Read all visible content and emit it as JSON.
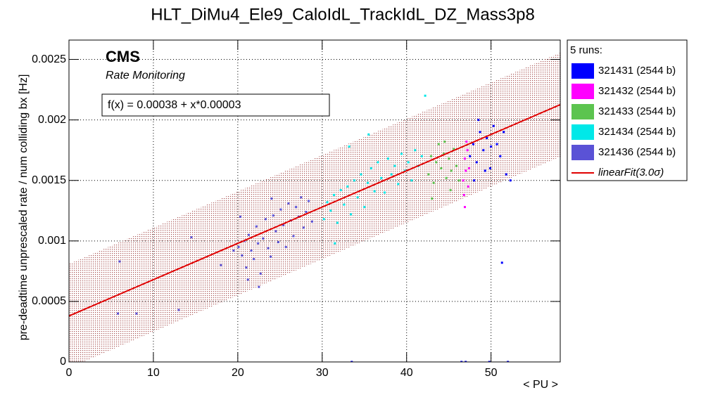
{
  "chart_data": {
    "type": "scatter",
    "title": "HLT_DiMu4_Ele9_CaloIdL_TrackIdL_DZ_Mass3p8",
    "x_label": "< PU >",
    "y_label": "pre-deadtime unprescaled rate / num colliding bx [Hz]",
    "annotations": [
      "CMS",
      "Rate Monitoring"
    ],
    "xlim": [
      0,
      58.2
    ],
    "xticks": [
      0,
      10,
      20,
      30,
      40,
      50
    ],
    "ylim": [
      0,
      0.00266
    ],
    "yticks": [
      0,
      0.0005,
      0.001,
      0.0015,
      0.002,
      0.0025
    ],
    "grid": true,
    "legend_title": "5 runs:",
    "legend": "top-right-outside",
    "fit": {
      "label": "f(x) = 0.00038 + x*0.00003",
      "legend": "linearFit(3.0σ)",
      "color": "#e00000",
      "intercept": 0.00038,
      "slope": 3e-05,
      "band": 0.00043
    },
    "series": [
      {
        "name": "321431 (2544 b)",
        "color": "#0000ff",
        "x": [
          47.5,
          47.9,
          48.3,
          48.7,
          49.1,
          49.5,
          49.9,
          50.3,
          50.7,
          51.1,
          51.5,
          48.0,
          49.3,
          50.0,
          51.8,
          52.3,
          48.5,
          51.3,
          33.5,
          46.5,
          47,
          49.8,
          52
        ],
        "y": [
          0.0017,
          0.0018,
          0.00165,
          0.0019,
          0.00175,
          0.00185,
          0.0016,
          0.00195,
          0.0018,
          0.0017,
          0.0019,
          0.0015,
          0.00158,
          0.00178,
          0.00155,
          0.0015,
          0.002,
          0.00082,
          0,
          0,
          0,
          0,
          0
        ]
      },
      {
        "name": "321432 (2544 b)",
        "color": "#ff00ff",
        "x": [
          46.7,
          46.9,
          47.0,
          47.2,
          47.3,
          46.8,
          47.1,
          47.4,
          46.9
        ],
        "y": [
          0.0015,
          0.00168,
          0.00158,
          0.00175,
          0.00145,
          0.00138,
          0.00182,
          0.0016,
          0.00128
        ]
      },
      {
        "name": "321433 (2544 b)",
        "color": "#5cc44f",
        "x": [
          42.6,
          42.9,
          43.2,
          43.5,
          43.8,
          44.1,
          44.4,
          44.7,
          45.0,
          45.3,
          45.6,
          45.9,
          46.2,
          43.0,
          44.5,
          45.2
        ],
        "y": [
          0.00155,
          0.0017,
          0.00148,
          0.00165,
          0.0018,
          0.0016,
          0.00172,
          0.00152,
          0.00168,
          0.00158,
          0.00176,
          0.00162,
          0.0015,
          0.00135,
          0.00182,
          0.00142
        ]
      },
      {
        "name": "321434 (2544 b)",
        "color": "#00e8e8",
        "x": [
          30.2,
          30.6,
          31.0,
          31.4,
          31.8,
          32.2,
          32.6,
          33.0,
          33.4,
          33.8,
          34.2,
          34.6,
          35.0,
          35.4,
          35.8,
          36.2,
          36.6,
          37.0,
          37.4,
          37.8,
          38.2,
          38.6,
          39.0,
          39.4,
          39.8,
          40.2,
          40.6,
          41.0,
          41.4,
          41.8,
          42.2,
          35.5,
          31.5,
          33.2
        ],
        "y": [
          0.00118,
          0.00132,
          0.00125,
          0.00138,
          0.00115,
          0.00142,
          0.0013,
          0.00145,
          0.00122,
          0.0015,
          0.00136,
          0.00155,
          0.00128,
          0.00148,
          0.0016,
          0.00141,
          0.00165,
          0.00152,
          0.0014,
          0.00168,
          0.00155,
          0.00162,
          0.00147,
          0.00172,
          0.00158,
          0.00165,
          0.0015,
          0.00175,
          0.00162,
          0.0017,
          0.0022,
          0.00188,
          0.00098,
          0.00178
        ]
      },
      {
        "name": "321436 (2544 b)",
        "color": "#5a52d6",
        "x": [
          20.1,
          20.5,
          20.8,
          21.0,
          21.3,
          21.6,
          21.9,
          22.2,
          22.4,
          22.7,
          23.0,
          23.3,
          23.6,
          23.9,
          24.2,
          24.5,
          24.8,
          25.1,
          25.4,
          25.7,
          26.0,
          26.3,
          26.6,
          26.9,
          27.2,
          27.5,
          27.8,
          28.1,
          28.4,
          28.8,
          21.2,
          22.5,
          20.3,
          24.0,
          19.5,
          6.0,
          8.0,
          13.0,
          14.5,
          18.0,
          5.8
        ],
        "y": [
          0.00095,
          0.00088,
          0.001,
          0.00078,
          0.00105,
          0.00092,
          0.00085,
          0.00112,
          0.00098,
          0.00073,
          0.00102,
          0.00118,
          0.00094,
          0.00087,
          0.00121,
          0.00108,
          0.00099,
          0.00126,
          0.00113,
          0.00095,
          0.00131,
          0.00117,
          0.00104,
          0.00128,
          0.0012,
          0.00136,
          0.00111,
          0.00124,
          0.00133,
          0.00116,
          0.00068,
          0.00062,
          0.0012,
          0.00135,
          0.00092,
          0.00083,
          0.0004,
          0.00043,
          0.00103,
          0.0008,
          0.0004
        ]
      }
    ]
  }
}
